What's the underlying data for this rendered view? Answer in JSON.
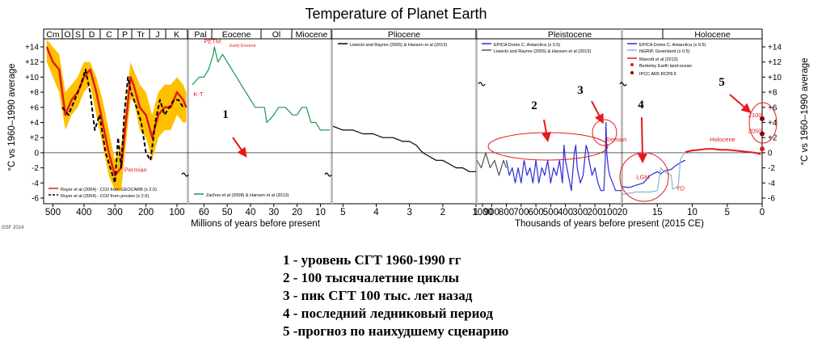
{
  "chart_data": {
    "type": "line",
    "title": "Temperature of Planet Earth",
    "ylabel": "°C vs 1960–1990 average",
    "ylim": [
      -6,
      14
    ],
    "yticks": [
      "+14",
      "+12",
      "+10",
      "+8",
      "+6",
      "+4",
      "+2",
      "0",
      "-2",
      "-4",
      "-6"
    ],
    "grid": false,
    "source_credit": "GSF 2014",
    "periods": [
      {
        "label": "Cm",
        "panel": 0
      },
      {
        "label": "O",
        "panel": 0
      },
      {
        "label": "S",
        "panel": 0
      },
      {
        "label": "D",
        "panel": 0
      },
      {
        "label": "C",
        "panel": 0
      },
      {
        "label": "P",
        "panel": 0
      },
      {
        "label": "Tr",
        "panel": 0
      },
      {
        "label": "J",
        "panel": 0
      },
      {
        "label": "K",
        "panel": 0
      },
      {
        "label": "Pal",
        "panel": 1
      },
      {
        "label": "Eocene",
        "panel": 1
      },
      {
        "label": "Ol",
        "panel": 1
      },
      {
        "label": "Miocene",
        "panel": 1
      },
      {
        "label": "Pliocene",
        "panel": 2
      },
      {
        "label": "Pleistocene",
        "panel": 3
      },
      {
        "label": "Holocene",
        "panel": 4
      }
    ],
    "panels": [
      {
        "xaxis_label": "Millions of years before present",
        "xticks": [
          "500",
          "400",
          "300",
          "200",
          "100"
        ],
        "xrange_myr": [
          530,
          66
        ],
        "series": [
          {
            "name": "Royer et al (2004) - CO2 from GEOCARB (x 2.0)",
            "color": "#e41a1c",
            "x": [
              520,
              500,
              480,
              460,
              440,
              420,
              400,
              380,
              360,
              340,
              320,
              300,
              280,
              260,
              250,
              240,
              220,
              200,
              180,
              160,
              140,
              120,
              100,
              80,
              70
            ],
            "y": [
              14,
              12,
              11,
              5,
              7,
              8,
              10,
              11,
              8,
              4,
              0,
              -3,
              -2,
              6,
              10,
              9,
              6,
              5,
              2,
              5,
              6,
              6,
              8,
              7,
              6
            ]
          },
          {
            "name": "Royer et al (2004) - CO2 from proxies (x 2.0)",
            "color": "#000000",
            "x": [
              470,
              450,
              430,
              410,
              395,
              380,
              365,
              350,
              330,
              315,
              300,
              290,
              280,
              270,
              258,
              248,
              230,
              215,
              200,
              185,
              170,
              155,
              140,
              125,
              110,
              95,
              80
            ],
            "y": [
              6,
              5,
              7,
              9,
              11,
              8,
              3,
              5,
              0,
              -2,
              -4,
              2,
              -2,
              5,
              10,
              8,
              6,
              4,
              0,
              -1,
              4,
              7,
              5,
              6,
              7,
              7,
              6
            ]
          }
        ],
        "band": {
          "color": "#ffc000",
          "x": [
            520,
            500,
            480,
            460,
            440,
            420,
            400,
            380,
            360,
            340,
            320,
            300,
            280,
            260,
            250,
            240,
            220,
            200,
            180,
            160,
            140,
            120,
            100,
            80,
            70
          ],
          "upper": [
            15,
            14,
            13,
            8,
            9,
            10,
            12,
            12,
            10,
            7,
            3,
            -1,
            1,
            8,
            12,
            11,
            9,
            8,
            5,
            8,
            9,
            9,
            10,
            9,
            8
          ],
          "lower": [
            12,
            10,
            8,
            3,
            5,
            6,
            8,
            9,
            5,
            1,
            -3,
            -5,
            -5,
            3,
            7,
            7,
            3,
            2,
            -1,
            2,
            3,
            3,
            5,
            4,
            4
          ]
        },
        "annotations": [
          {
            "text": "Permian",
            "x": 270,
            "y": -2.5,
            "color": "#e41a1c"
          }
        ]
      },
      {
        "xticks": [
          "60",
          "50",
          "40",
          "30",
          "20",
          "10"
        ],
        "xrange_myr": [
          66,
          5.3
        ],
        "series": [
          {
            "name": "Zachos et al (2008) & Hansen et al (2013)",
            "color": "#1a9850",
            "x": [
              65,
              62,
              60,
              58,
              56,
              55.5,
              54,
              52,
              50,
              48,
              46,
              44,
              42,
              40,
              38,
              36,
              34,
              33,
              30,
              28,
              25,
              22,
              20,
              18,
              16,
              15,
              14,
              12,
              10,
              8,
              6
            ],
            "y": [
              9,
              10,
              10,
              11,
              13,
              14,
              12,
              13,
              12,
              11,
              10,
              9,
              8,
              7,
              6,
              6,
              6,
              4,
              5,
              6,
              6,
              5,
              5,
              6,
              6,
              5,
              4,
              4,
              3,
              3,
              3
            ]
          }
        ],
        "annotations": [
          {
            "text": "PETM",
            "x": 60,
            "y": 14.5,
            "color": "#e41a1c"
          },
          {
            "text": "Early Eocene",
            "x": 49,
            "y": 14,
            "color": "#e41a1c"
          },
          {
            "text": "K-T",
            "x": 64.5,
            "y": 7.5,
            "color": "#e41a1c"
          }
        ]
      },
      {
        "xticks": [
          "5",
          "4",
          "3",
          "2",
          "1"
        ],
        "xrange_myr": [
          5.3,
          1.0
        ],
        "series": [
          {
            "name": "Lisiecki and Raymo (2005) & Hansen et al (2013)",
            "color": "#000000",
            "x": [
              5.3,
              5.0,
              4.7,
              4.4,
              4.1,
              3.8,
              3.5,
              3.2,
              3.0,
              2.8,
              2.6,
              2.4,
              2.2,
              2.0,
              1.8,
              1.6,
              1.4,
              1.2,
              1.0
            ],
            "y": [
              3.5,
              3,
              3,
              2.5,
              2.5,
              2,
              2,
              1.5,
              1.5,
              1,
              0,
              -0.5,
              -1,
              -1,
              -1.5,
              -2,
              -2,
              -2.5,
              -2.5
            ]
          }
        ]
      },
      {
        "xaxis_label": "Thousands of years before present (2015 CE)",
        "xticks": [
          "1000",
          "900",
          "800",
          "700",
          "600",
          "500",
          "400",
          "300",
          "200",
          "100"
        ],
        "xrange_kyr": [
          1000,
          20
        ],
        "series": [
          {
            "name": "EPICA Dome C, Antarctica (x 0.5)",
            "color": "#2b2bd4",
            "x": [
              800,
              780,
              760,
              740,
              720,
              700,
              680,
              660,
              640,
              620,
              600,
              580,
              560,
              540,
              520,
              500,
              480,
              460,
              440,
              420,
              410,
              400,
              380,
              360,
              340,
              330,
              320,
              300,
              280,
              260,
              245,
              240,
              220,
              200,
              180,
              160,
              140,
              130,
              125,
              120,
              110,
              100,
              80,
              60,
              40,
              20
            ],
            "y": [
              -1,
              -3,
              -2,
              -4,
              -2,
              -4,
              -1,
              -3,
              -2,
              -4,
              -1,
              -4,
              -2,
              -3,
              -1,
              -4,
              -2,
              -3,
              -1,
              -4,
              1,
              -1,
              -3,
              -5,
              0,
              1,
              -2,
              -4,
              -3,
              1,
              0,
              -1,
              -3,
              -2,
              -4,
              -5,
              -5,
              -1,
              4,
              0,
              -2,
              -3,
              -4,
              -5,
              -5,
              -5
            ]
          },
          {
            "name": "Lisiecki and Raymo (2005) & Hansen et al (2013)",
            "color": "#555555",
            "x": [
              1000,
              970,
              940,
              910,
              880,
              850,
              820,
              800
            ],
            "y": [
              -1,
              -2,
              0,
              -2,
              -1,
              -3,
              -1,
              -2
            ]
          }
        ],
        "annotations": [
          {
            "text": "Eemian",
            "x": 125,
            "y": 1.5,
            "color": "#e41a1c"
          }
        ]
      },
      {
        "xticks": [
          "20",
          "15",
          "10",
          "5",
          "0"
        ],
        "xrange_kyr": [
          20,
          0
        ],
        "series": [
          {
            "name": "EPICA Dome C, Antarctica (x 0.5)",
            "color": "#2b2bd4",
            "x": [
              20,
              19,
              18,
              17,
              16,
              15,
              14.5,
              14,
              13,
              12.5,
              12,
              11.5,
              11
            ],
            "y": [
              -4.5,
              -4.6,
              -4.3,
              -4,
              -3,
              -2.5,
              -2.8,
              -2.4,
              -2.2,
              -1.8,
              -1.5,
              -1.2,
              -1
            ]
          },
          {
            "name": "NGRIP, Greenland (x 0.5)",
            "color": "#7fb8d6",
            "x": [
              20,
              18,
              16,
              15,
              14.5,
              14,
              13,
              12.8,
              12,
              11.7,
              11.5,
              11
            ],
            "y": [
              -5.5,
              -5.2,
              -5.2,
              -5,
              -2,
              -2.5,
              -3,
              -4.8,
              -4.5,
              -1,
              -0.5,
              0
            ]
          },
          {
            "name": "Marcott et al (2013)",
            "color": "#e41a1c",
            "x": [
              11,
              10,
              9,
              8,
              7,
              6,
              5,
              4,
              3,
              2,
              1,
              0.2
            ],
            "y": [
              0.1,
              0.3,
              0.4,
              0.5,
              0.5,
              0.4,
              0.4,
              0.3,
              0.2,
              0.1,
              0,
              -0.2
            ]
          },
          {
            "name": "Berkeley Earth land-ocean",
            "color": "#e41a1c",
            "type": "point",
            "x": [
              0
            ],
            "y": [
              0.5
            ]
          },
          {
            "name": "IPCC AR5 RCP8.5",
            "color": "#8b0000",
            "type": "point",
            "x": [
              0,
              0
            ],
            "y": [
              4.5,
              2.5
            ]
          }
        ],
        "annotations": [
          {
            "text": "LGM",
            "x": 18,
            "y": -3.5,
            "color": "#e41a1c"
          },
          {
            "text": "YD",
            "x": 12.3,
            "y": -5,
            "color": "#e41a1c"
          },
          {
            "text": "Holocene",
            "x": 7.5,
            "y": 1.5,
            "color": "#e41a1c"
          },
          {
            "text": "2100",
            "x": 2,
            "y": 4.7,
            "color": "#e41a1c"
          },
          {
            "text": "2050",
            "x": 2,
            "y": 2.6,
            "color": "#e41a1c"
          }
        ]
      }
    ],
    "markers": [
      {
        "text": "1",
        "color": "#000000"
      },
      {
        "text": "2",
        "color": "#000000"
      },
      {
        "text": "3",
        "color": "#000000"
      },
      {
        "text": "4",
        "color": "#000000"
      },
      {
        "text": "5",
        "color": "#000000"
      }
    ]
  },
  "notes": [
    "1 - уровень  СГТ 1960-1990 гг",
    "2 - 100 тысячалетние циклы",
    "3 -  пик  СГТ  100 тыс. лет назад",
    "4 - последний ледниковый период",
    "5 -прогноз по наихудшему сценарию"
  ]
}
